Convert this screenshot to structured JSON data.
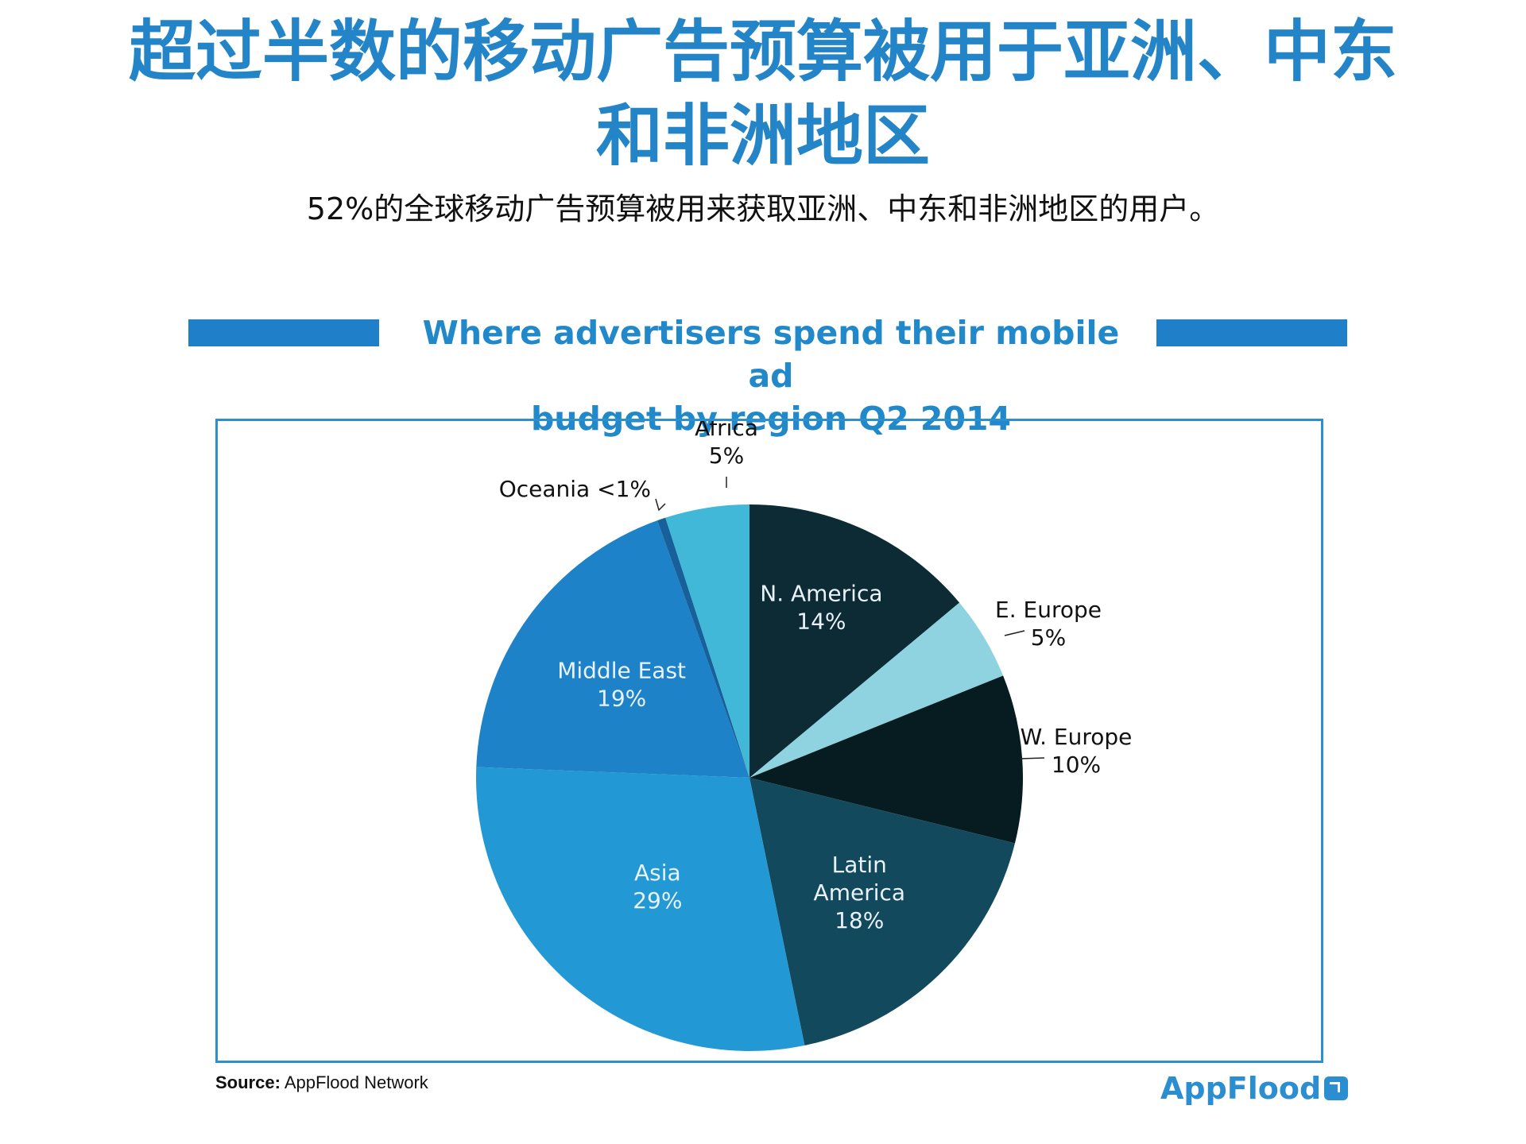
{
  "headline": {
    "line1": "超过半数的移动广告预算被用于亚洲、中东",
    "line2": "和非洲地区"
  },
  "subhead": "52%的全球移动广告预算被用来获取亚洲、中东和非洲地区的用户。",
  "footer": {
    "source_label": "Source:",
    "source_text": "AppFlood Network",
    "logo_text": "AppFlood"
  },
  "colors": {
    "accent": "#2385c8",
    "n_america": "#0d2b35",
    "e_europe": "#8ed3df",
    "w_europe": "#061c20",
    "latin_america": "#12495d",
    "asia": "#2299d4",
    "middle_east": "#1e82c8",
    "oceania": "#17609a",
    "africa": "#42b8d8"
  },
  "chart_data": {
    "type": "pie",
    "title": "Where advertisers spend their mobile ad budget by region Q2 2014",
    "title_lines": [
      "Where advertisers spend their mobile ad",
      "budget by region Q2 2014"
    ],
    "slices": [
      {
        "label": "N. America",
        "value": 14,
        "display": "14%",
        "color": "#0d2b35",
        "label_inside": true
      },
      {
        "label": "E. Europe",
        "value": 5,
        "display": "5%",
        "color": "#8ed3df",
        "label_inside": false
      },
      {
        "label": "W. Europe",
        "value": 10,
        "display": "10%",
        "color": "#061c20",
        "label_inside": false
      },
      {
        "label": "Latin America",
        "value": 18,
        "display": "18%",
        "color": "#12495d",
        "label_inside": true
      },
      {
        "label": "Asia",
        "value": 29,
        "display": "29%",
        "color": "#2299d4",
        "label_inside": true
      },
      {
        "label": "Middle East",
        "value": 19,
        "display": "19%",
        "color": "#1e82c8",
        "label_inside": true
      },
      {
        "label": "Oceania",
        "value": 0.5,
        "display": "<1%",
        "color": "#17609a",
        "label_inside": false
      },
      {
        "label": "Africa",
        "value": 5,
        "display": "5%",
        "color": "#42b8d8",
        "label_inside": false
      }
    ]
  }
}
